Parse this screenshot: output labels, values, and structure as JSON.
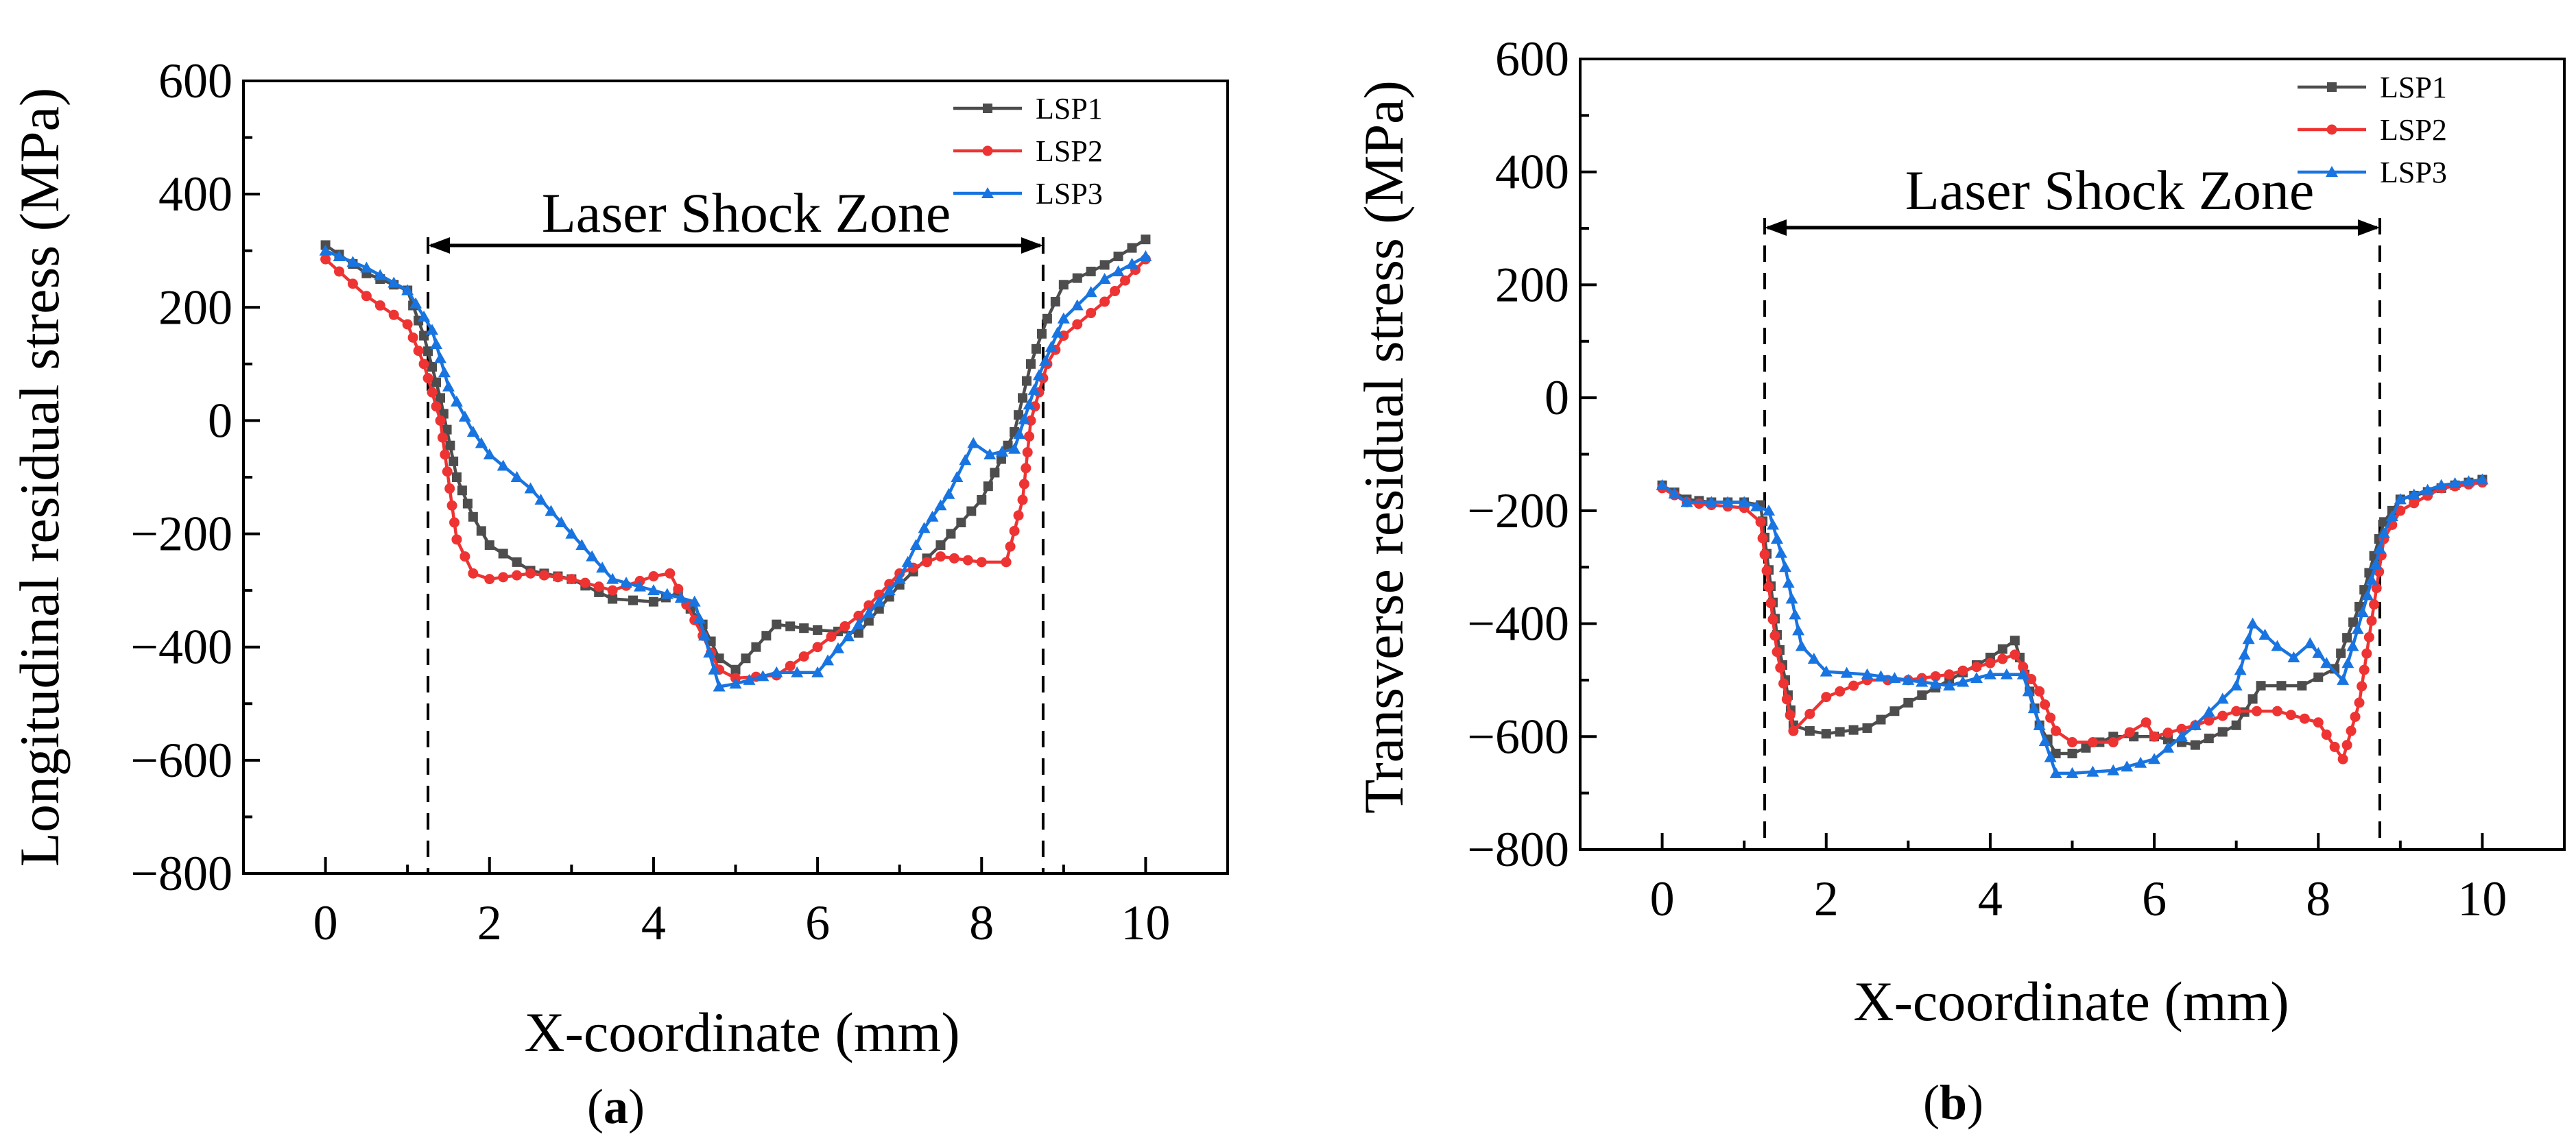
{
  "colors": {
    "LSP1": "#4d4d4d",
    "LSP2": "#ee3333",
    "LSP3": "#1874e0"
  },
  "chart_data": [
    {
      "type": "line",
      "panel_label": "(a)",
      "panel_label_parts": [
        "(",
        "a",
        ")"
      ],
      "xlabel": "X-coordinate (mm)",
      "ylabel": "Longitudinal residual stress (MPa)",
      "xlim": [
        -1,
        11
      ],
      "ylim": [
        -800,
        600
      ],
      "xticks": [
        0,
        2,
        4,
        6,
        8,
        10
      ],
      "yticks": [
        -800,
        -600,
        -400,
        -200,
        0,
        200,
        400,
        600
      ],
      "zone_label": "Laser Shock Zone",
      "zone_start": 1.25,
      "zone_end": 8.75,
      "legend": [
        "LSP1",
        "LSP2",
        "LSP3"
      ],
      "series": [
        {
          "name": "LSP1",
          "x": [
            0,
            0.5,
            1.0,
            1.2,
            1.4,
            1.6,
            1.8,
            2.0,
            2.5,
            3.0,
            3.5,
            4.0,
            4.3,
            4.6,
            4.8,
            5.0,
            5.5,
            6.0,
            6.5,
            7.0,
            7.5,
            8.0,
            8.4,
            8.6,
            8.8,
            9.0,
            9.5,
            10.0
          ],
          "y": [
            310,
            260,
            230,
            150,
            40,
            -100,
            -170,
            -220,
            -265,
            -280,
            -315,
            -320,
            -305,
            -360,
            -420,
            -440,
            -360,
            -370,
            -375,
            -290,
            -220,
            -140,
            -20,
            100,
            180,
            240,
            275,
            320
          ]
        },
        {
          "name": "LSP2",
          "x": [
            0,
            0.5,
            1.0,
            1.2,
            1.4,
            1.6,
            1.8,
            2.0,
            2.5,
            3.0,
            3.5,
            4.0,
            4.2,
            4.6,
            4.8,
            5.0,
            5.5,
            6.0,
            6.5,
            7.0,
            7.5,
            8.0,
            8.3,
            8.5,
            8.6,
            8.8,
            9.0,
            9.5,
            10.0
          ],
          "y": [
            285,
            220,
            170,
            100,
            0,
            -210,
            -270,
            -280,
            -270,
            -280,
            -300,
            -275,
            -270,
            -380,
            -440,
            -455,
            -450,
            -400,
            -345,
            -270,
            -240,
            -250,
            -250,
            -140,
            0,
            100,
            150,
            210,
            285
          ]
        },
        {
          "name": "LSP3",
          "x": [
            0,
            0.5,
            1.0,
            1.3,
            1.5,
            1.8,
            2.0,
            2.5,
            3.0,
            3.5,
            4.0,
            4.5,
            4.8,
            5.0,
            5.5,
            6.0,
            6.5,
            7.0,
            7.3,
            7.6,
            7.9,
            8.1,
            8.4,
            8.7,
            9.0,
            9.5,
            10.0
          ],
          "y": [
            300,
            270,
            230,
            160,
            60,
            -20,
            -60,
            -120,
            -200,
            -280,
            -300,
            -320,
            -470,
            -465,
            -445,
            -445,
            -360,
            -280,
            -190,
            -130,
            -40,
            -60,
            -50,
            80,
            180,
            250,
            290
          ]
        }
      ]
    },
    {
      "type": "line",
      "panel_label": "(b)",
      "panel_label_parts": [
        "(",
        "b",
        ")"
      ],
      "xlabel": "X-coordinate (mm)",
      "ylabel": "Transverse residual stress (MPa)",
      "xlim": [
        -1,
        11
      ],
      "ylim": [
        -800,
        600
      ],
      "xticks": [
        0,
        2,
        4,
        6,
        8,
        10
      ],
      "yticks": [
        -800,
        -600,
        -400,
        -200,
        0,
        200,
        400,
        600
      ],
      "zone_label": "Laser Shock Zone",
      "zone_start": 1.25,
      "zone_end": 8.75,
      "legend": [
        "LSP1",
        "LSP2",
        "LSP3"
      ],
      "series": [
        {
          "name": "LSP1",
          "x": [
            0,
            0.3,
            0.6,
            1.0,
            1.2,
            1.4,
            1.6,
            1.8,
            2.0,
            2.5,
            3.0,
            3.5,
            4.0,
            4.3,
            4.6,
            4.8,
            5.0,
            5.5,
            6.0,
            6.5,
            7.0,
            7.3,
            7.8,
            8.2,
            8.5,
            8.8,
            9.0,
            9.5,
            10.0
          ],
          "y": [
            -155,
            -180,
            -185,
            -185,
            -190,
            -420,
            -580,
            -590,
            -595,
            -585,
            -540,
            -500,
            -460,
            -430,
            -580,
            -630,
            -630,
            -600,
            -600,
            -615,
            -580,
            -510,
            -510,
            -480,
            -370,
            -220,
            -180,
            -160,
            -145
          ]
        },
        {
          "name": "LSP2",
          "x": [
            0,
            0.3,
            0.6,
            1.0,
            1.2,
            1.4,
            1.6,
            1.8,
            2.0,
            2.5,
            3.0,
            3.5,
            4.0,
            4.3,
            4.6,
            4.8,
            5.0,
            5.5,
            5.9,
            6.0,
            6.5,
            7.0,
            7.5,
            8.0,
            8.3,
            8.5,
            8.8,
            9.0,
            9.5,
            10.0
          ],
          "y": [
            -160,
            -185,
            -190,
            -195,
            -220,
            -450,
            -590,
            -560,
            -530,
            -500,
            -500,
            -490,
            -470,
            -455,
            -520,
            -590,
            -610,
            -610,
            -575,
            -600,
            -580,
            -555,
            -555,
            -575,
            -640,
            -540,
            -250,
            -200,
            -160,
            -150
          ]
        },
        {
          "name": "LSP3",
          "x": [
            0,
            0.3,
            0.6,
            1.0,
            1.3,
            1.5,
            1.7,
            2.0,
            2.5,
            3.0,
            3.5,
            4.0,
            4.4,
            4.6,
            4.8,
            5.0,
            5.5,
            6.0,
            6.5,
            7.0,
            7.2,
            7.5,
            7.7,
            7.9,
            8.1,
            8.3,
            8.6,
            8.8,
            9.0,
            9.5,
            10.0
          ],
          "y": [
            -155,
            -185,
            -185,
            -185,
            -200,
            -300,
            -440,
            -485,
            -490,
            -500,
            -510,
            -490,
            -490,
            -580,
            -665,
            -665,
            -660,
            -640,
            -580,
            -510,
            -400,
            -440,
            -460,
            -435,
            -470,
            -500,
            -350,
            -240,
            -180,
            -155,
            -145
          ]
        }
      ]
    }
  ]
}
